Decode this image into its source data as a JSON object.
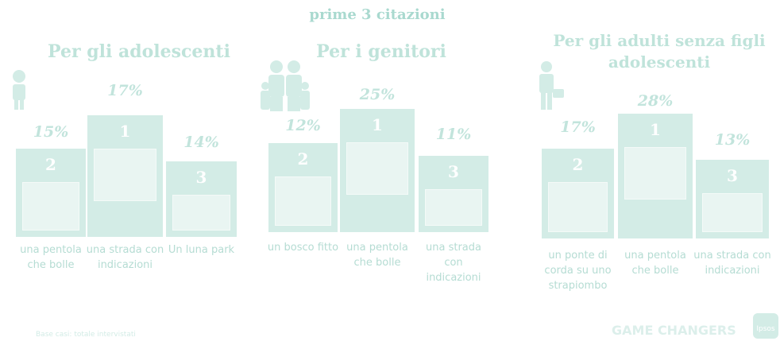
{
  "title": "prime 3 citazioni",
  "groups": [
    {
      "title": "Per gli adolescenti",
      "items": [
        {
          "rank": "2",
          "percent": "15%",
          "label": "una pentola che bolle"
        },
        {
          "rank": "1",
          "percent": "17%",
          "label": "una strada con indicazioni"
        },
        {
          "rank": "3",
          "percent": "14%",
          "label": "Un luna park"
        }
      ]
    },
    {
      "title": "Per i genitori",
      "items": [
        {
          "rank": "2",
          "percent": "12%",
          "label": "un bosco fitto"
        },
        {
          "rank": "1",
          "percent": "25%",
          "label": "una pentola che bolle"
        },
        {
          "rank": "3",
          "percent": "11%",
          "label": "una strada con indicazioni"
        }
      ]
    },
    {
      "title": "Per gli adulti senza figli adolescenti",
      "items": [
        {
          "rank": "2",
          "percent": "17%",
          "label": "un ponte di corda su uno strapiombo"
        },
        {
          "rank": "1",
          "percent": "28%",
          "label": "una pentola che bolle"
        },
        {
          "rank": "3",
          "percent": "13%",
          "label": "una strada con indicazioni"
        }
      ]
    }
  ],
  "footer": {
    "note": "Base casi: totale intervistati",
    "brand": "GAME CHANGERS",
    "logo": "Ipsos"
  }
}
